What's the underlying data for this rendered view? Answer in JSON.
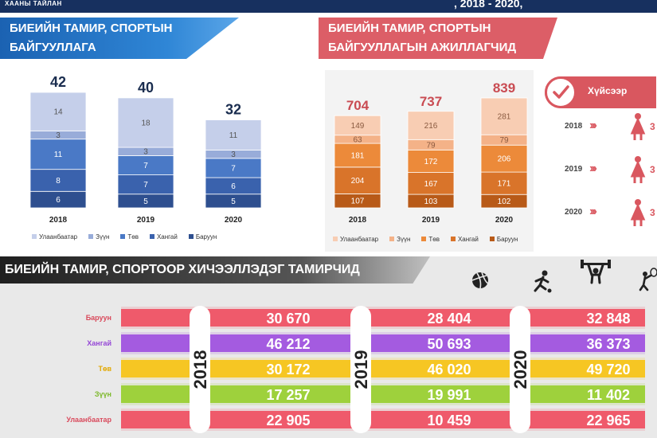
{
  "header": {
    "left_text": "ХААНЫ ТАЙЛАН",
    "right_text": ", 2018 - 2020,",
    "colors": {
      "topbar": "#17305f"
    }
  },
  "orgs": {
    "title_line1": "БИЕИЙН ТАМИР, СПОРТЫН",
    "title_line2": "БАЙГУУЛЛАГА",
    "chart_data": {
      "type": "bar",
      "stacked": true,
      "categories": [
        "2018",
        "2019",
        "2020"
      ],
      "totals": [
        42,
        40,
        32
      ],
      "series": [
        {
          "name": "Баруун",
          "values": [
            6,
            5,
            5
          ],
          "color": "#2e4f8f"
        },
        {
          "name": "Хангай",
          "values": [
            8,
            7,
            6
          ],
          "color": "#3a62ad"
        },
        {
          "name": "Төв",
          "values": [
            11,
            7,
            7
          ],
          "color": "#4a79c6"
        },
        {
          "name": "Зүүн",
          "values": [
            3,
            3,
            3
          ],
          "color": "#98acd9"
        },
        {
          "name": "Улаанбаатар",
          "values": [
            14,
            18,
            11
          ],
          "color": "#c5cfea"
        }
      ]
    }
  },
  "staff": {
    "title_line1": "БИЕИЙН ТАМИР, СПОРТЫН",
    "title_line2": "БАЙГУУЛЛАГЫН АЖИЛЛАГЧИД",
    "chart_data": {
      "type": "bar",
      "stacked": true,
      "categories": [
        "2018",
        "2019",
        "2020"
      ],
      "totals": [
        704,
        737,
        839
      ],
      "series": [
        {
          "name": "Баруун",
          "values": [
            107,
            103,
            102
          ],
          "color": "#b85a18"
        },
        {
          "name": "Хангай",
          "values": [
            204,
            167,
            171
          ],
          "color": "#d9742a"
        },
        {
          "name": "Төв",
          "values": [
            181,
            172,
            206
          ],
          "color": "#ec8a3a"
        },
        {
          "name": "Зүүн",
          "values": [
            63,
            79,
            79
          ],
          "color": "#f4b288"
        },
        {
          "name": "Улаанбаатар",
          "values": [
            149,
            216,
            281
          ],
          "color": "#f8cdb3"
        }
      ]
    }
  },
  "hs": {
    "title": "Хүйсээр",
    "rows": [
      {
        "year": "2018",
        "value": "3"
      },
      {
        "year": "2019",
        "value": "3"
      },
      {
        "year": "2020",
        "value": "3"
      }
    ]
  },
  "athletes": {
    "title": "БИЕИЙН ТАМИР, СПОРТООР ХИЧЭЭЛЛЭДЭГ ТАМИРЧИД",
    "icons": [
      "volleyball-icon",
      "runner-icon",
      "weightlifter-icon",
      "tennis-icon"
    ],
    "chart_data": {
      "type": "bar",
      "years": [
        "2018",
        "2019",
        "2020"
      ],
      "regions": [
        {
          "name": "Баруун",
          "values": [
            "30 670",
            "28 404",
            "32 848"
          ],
          "color": "#ef5a6b",
          "text_color": "#d94a5c"
        },
        {
          "name": "Хангай",
          "values": [
            "46 212",
            "50 693",
            "36 373"
          ],
          "color": "#a45be0",
          "text_color": "#9547d6"
        },
        {
          "name": "Төв",
          "values": [
            "30 172",
            "46 020",
            "49 720"
          ],
          "color": "#f6c623",
          "text_color": "#e2a800"
        },
        {
          "name": "Зүүн",
          "values": [
            "17 257",
            "19 991",
            "11 402"
          ],
          "color": "#9ed13c",
          "text_color": "#7cb82a"
        },
        {
          "name": "Улаанбаатар",
          "values": [
            "22 905",
            "10 459",
            "22 965"
          ],
          "color": "#ef5a6b",
          "text_color": "#d94a5c"
        }
      ]
    }
  }
}
